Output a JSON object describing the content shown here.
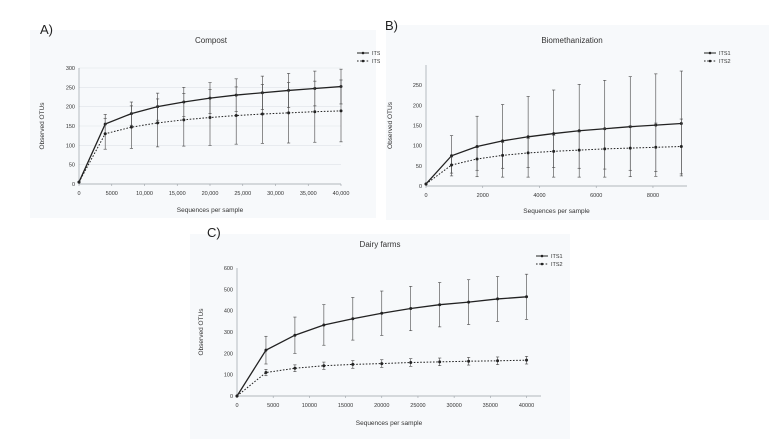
{
  "panels": [
    {
      "letter": "A)"
    },
    {
      "letter": "B)"
    },
    {
      "letter": "C)"
    }
  ],
  "chart_data": [
    {
      "type": "line",
      "title": "Compost",
      "xlabel": "Sequences per sample",
      "ylabel": "Observed OTUs",
      "xlim": [
        0,
        40000
      ],
      "ylim": [
        0,
        300
      ],
      "xticks": [
        0,
        5000,
        10000,
        15000,
        20000,
        25000,
        30000,
        35000,
        40000
      ],
      "xtick_labels": [
        "0",
        "5000",
        "10,000",
        "15,000",
        "20,000",
        "25,000",
        "30,000",
        "35,000",
        "40,000"
      ],
      "yticks": [
        0,
        50,
        100,
        150,
        200,
        250,
        300
      ],
      "ytick_labels": [
        "0",
        "50",
        "100",
        "150",
        "200",
        "250",
        "300"
      ],
      "grid": true,
      "legend": "top-right",
      "x": [
        0,
        4000,
        8000,
        12000,
        16000,
        20000,
        24000,
        28000,
        32000,
        36000,
        40000
      ],
      "series": [
        {
          "name": "ITS1",
          "style": "solid",
          "color": "#222222",
          "values": [
            5,
            155,
            182,
            200,
            212,
            222,
            230,
            236,
            242,
            247,
            252
          ],
          "errors": [
            0,
            25,
            30,
            35,
            38,
            40,
            42,
            43,
            44,
            45,
            45
          ]
        },
        {
          "name": "ITS2",
          "style": "dotted",
          "color": "#222222",
          "values": [
            5,
            130,
            147,
            158,
            166,
            172,
            177,
            181,
            184,
            187,
            189
          ],
          "errors": [
            0,
            40,
            55,
            62,
            68,
            72,
            74,
            76,
            78,
            79,
            80
          ]
        }
      ]
    },
    {
      "type": "line",
      "title": "Biomethanization",
      "xlabel": "Sequences per sample",
      "ylabel": "Observed OTUs",
      "xlim": [
        0,
        9200
      ],
      "ylim": [
        0,
        300
      ],
      "xticks": [
        0,
        2000,
        4000,
        6000,
        8000
      ],
      "xtick_labels": [
        "0",
        "2000",
        "4000",
        "6000",
        "8000"
      ],
      "yticks": [
        0,
        50,
        100,
        150,
        200,
        250
      ],
      "ytick_labels": [
        "0",
        "50",
        "100",
        "150",
        "200",
        "250"
      ],
      "grid": false,
      "legend": "top-right",
      "x": [
        0,
        900,
        1800,
        2700,
        3600,
        4500,
        5400,
        6300,
        7200,
        8100,
        9000
      ],
      "series": [
        {
          "name": "ITS1",
          "style": "solid",
          "color": "#222222",
          "values": [
            5,
            75,
            98,
            112,
            122,
            130,
            137,
            142,
            147,
            151,
            155
          ],
          "errors": [
            0,
            50,
            75,
            90,
            100,
            108,
            115,
            120,
            124,
            127,
            130
          ]
        },
        {
          "name": "ITS2",
          "style": "dotted",
          "color": "#222222",
          "values": [
            5,
            52,
            67,
            76,
            82,
            86,
            89,
            92,
            94,
            96,
            98
          ],
          "errors": [
            0,
            20,
            28,
            32,
            36,
            40,
            45,
            50,
            55,
            60,
            68
          ]
        }
      ]
    },
    {
      "type": "line",
      "title": "Dairy farms",
      "xlabel": "Sequences per sample",
      "ylabel": "Observed OTUs",
      "xlim": [
        0,
        42000
      ],
      "ylim": [
        0,
        600
      ],
      "xticks": [
        0,
        5000,
        10000,
        15000,
        20000,
        25000,
        30000,
        35000,
        40000
      ],
      "xtick_labels": [
        "0",
        "5000",
        "10000",
        "15000",
        "20000",
        "25000",
        "30000",
        "35000",
        "40000"
      ],
      "yticks": [
        0,
        100,
        200,
        300,
        400,
        500,
        600
      ],
      "ytick_labels": [
        "0",
        "100",
        "200",
        "300",
        "400",
        "500",
        "600"
      ],
      "grid": false,
      "legend": "top-right",
      "x": [
        0,
        4000,
        8000,
        12000,
        16000,
        20000,
        24000,
        28000,
        32000,
        36000,
        40000
      ],
      "series": [
        {
          "name": "ITS1",
          "style": "solid",
          "color": "#222222",
          "values": [
            0,
            215,
            285,
            333,
            362,
            388,
            410,
            428,
            440,
            455,
            465
          ],
          "errors": [
            0,
            65,
            85,
            95,
            100,
            104,
            104,
            104,
            105,
            105,
            106
          ]
        },
        {
          "name": "ITS2",
          "style": "dotted",
          "color": "#222222",
          "values": [
            0,
            110,
            130,
            142,
            148,
            152,
            157,
            160,
            163,
            165,
            168
          ],
          "errors": [
            0,
            15,
            16,
            17,
            18,
            18,
            18,
            18,
            18,
            18,
            18
          ]
        }
      ]
    }
  ]
}
